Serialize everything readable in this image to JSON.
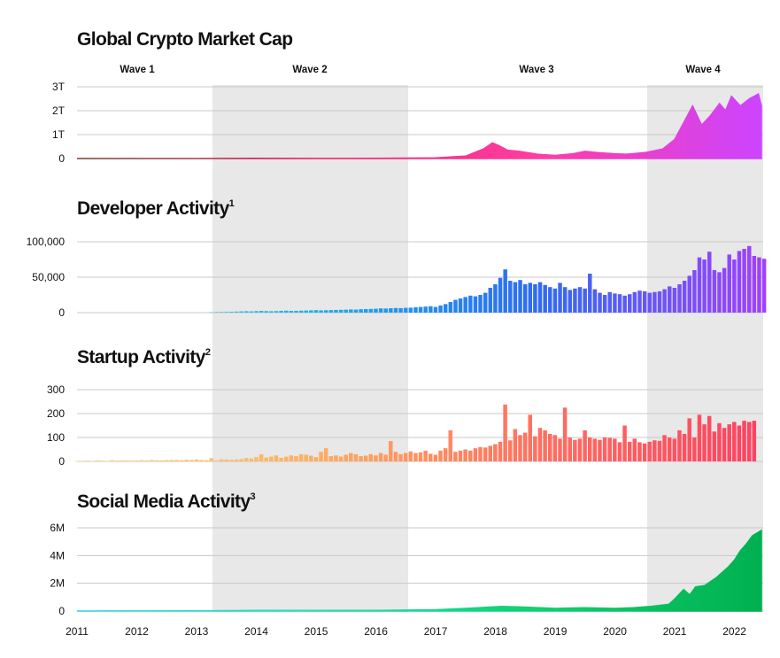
{
  "waves": [
    "Wave 1",
    "Wave 2",
    "Wave 3",
    "Wave 4"
  ],
  "chart_data": [
    {
      "id": "market_cap",
      "type": "area",
      "title": "Global Crypto Market Cap",
      "superscript": "",
      "yticks": [
        "0",
        "1T",
        "2T",
        "3T"
      ],
      "ylim": [
        0,
        3
      ],
      "x": [
        2011,
        2012,
        2013,
        2014,
        2015,
        2016,
        2016.5,
        2017,
        2017.5,
        2017.8,
        2017.95,
        2018.05,
        2018.2,
        2018.4,
        2018.7,
        2019,
        2019.3,
        2019.5,
        2019.7,
        2020,
        2020.2,
        2020.5,
        2020.8,
        2021,
        2021.15,
        2021.3,
        2021.45,
        2021.6,
        2021.75,
        2021.85,
        2021.95,
        2022.1,
        2022.25,
        2022.4,
        2022.45
      ],
      "values": [
        0.0,
        0.0,
        0.0,
        0.01,
        0.005,
        0.01,
        0.02,
        0.03,
        0.1,
        0.4,
        0.65,
        0.55,
        0.35,
        0.3,
        0.18,
        0.13,
        0.2,
        0.3,
        0.25,
        0.2,
        0.18,
        0.25,
        0.4,
        0.8,
        1.5,
        2.2,
        1.4,
        1.8,
        2.3,
        2.0,
        2.6,
        2.2,
        2.5,
        2.7,
        2.2
      ],
      "colors": [
        "#7a4030",
        "#e8276a",
        "#ff3da3",
        "#cc44ff"
      ]
    },
    {
      "id": "developer",
      "type": "bar",
      "title": "Developer Activity",
      "superscript": "1",
      "yticks": [
        "0",
        "50,000",
        "100,000"
      ],
      "ylim": [
        0,
        100000
      ],
      "x_start": 2013.25,
      "x_step": 0.0833,
      "values": [
        500,
        800,
        900,
        1000,
        1200,
        1500,
        1800,
        2000,
        1800,
        2200,
        2500,
        2200,
        2000,
        2200,
        2500,
        2800,
        2500,
        2600,
        2800,
        3000,
        3200,
        3500,
        3200,
        3400,
        3600,
        3800,
        4000,
        4200,
        4500,
        4300,
        4800,
        5000,
        5200,
        5500,
        6000,
        5800,
        6200,
        6500,
        6300,
        6800,
        7000,
        7500,
        8000,
        8500,
        9000,
        8000,
        10000,
        12000,
        15000,
        18000,
        20000,
        22000,
        24000,
        23000,
        25000,
        28000,
        35000,
        40000,
        49000,
        61000,
        45000,
        43000,
        46000,
        40000,
        42000,
        40000,
        43000,
        39000,
        36000,
        34000,
        42000,
        36000,
        32000,
        34000,
        36000,
        34000,
        55000,
        33000,
        28000,
        25000,
        29000,
        27000,
        26000,
        24000,
        26000,
        29000,
        31000,
        30000,
        28000,
        29000,
        30000,
        33000,
        37000,
        35000,
        40000,
        45000,
        52000,
        60000,
        78000,
        75000,
        86000,
        60000,
        57000,
        63000,
        82000,
        75000,
        87000,
        90000,
        94000,
        80000,
        78000,
        76000
      ],
      "colors": [
        "#4fd6e6",
        "#17b0f0",
        "#2f6cf0",
        "#a040ff"
      ]
    },
    {
      "id": "startup",
      "type": "bar",
      "title": "Startup Activity",
      "superscript": "2",
      "yticks": [
        "0",
        "100",
        "200",
        "300"
      ],
      "ylim": [
        0,
        300
      ],
      "x_start": 2011.0,
      "x_step": 0.0833,
      "values": [
        2,
        2,
        3,
        2,
        4,
        3,
        2,
        5,
        3,
        4,
        4,
        3,
        4,
        5,
        4,
        6,
        5,
        4,
        5,
        6,
        6,
        5,
        7,
        6,
        8,
        6,
        5,
        14,
        4,
        9,
        8,
        7,
        8,
        10,
        14,
        12,
        18,
        30,
        16,
        20,
        25,
        15,
        20,
        25,
        22,
        30,
        28,
        24,
        18,
        40,
        55,
        22,
        25,
        20,
        28,
        35,
        30,
        22,
        24,
        30,
        25,
        35,
        28,
        85,
        40,
        30,
        35,
        42,
        35,
        38,
        45,
        32,
        28,
        45,
        55,
        130,
        40,
        45,
        50,
        45,
        55,
        60,
        58,
        65,
        72,
        82,
        238,
        88,
        135,
        110,
        120,
        195,
        105,
        140,
        130,
        115,
        110,
        95,
        225,
        100,
        90,
        95,
        130,
        100,
        95,
        90,
        100,
        98,
        95,
        80,
        150,
        82,
        95,
        80,
        75,
        82,
        88,
        86,
        110,
        100,
        95,
        130,
        115,
        180,
        100,
        195,
        155,
        190,
        125,
        160,
        140,
        155,
        165,
        150,
        170,
        165,
        170
      ],
      "colors": [
        "#ffd37a",
        "#ffb060",
        "#ff7060",
        "#ff4060"
      ]
    },
    {
      "id": "social",
      "type": "area",
      "title": "Social Media Activity",
      "superscript": "3",
      "yticks": [
        "0",
        "2M",
        "4M",
        "6M"
      ],
      "ylim": [
        0,
        6.2
      ],
      "x": [
        2011,
        2013,
        2014,
        2015,
        2016,
        2017,
        2017.5,
        2017.9,
        2018.1,
        2018.5,
        2019,
        2019.5,
        2020,
        2020.3,
        2020.6,
        2020.9,
        2021.0,
        2021.15,
        2021.25,
        2021.35,
        2021.5,
        2021.7,
        2021.9,
        2022.0,
        2022.1,
        2022.2,
        2022.3,
        2022.45
      ],
      "values": [
        0.0,
        0.02,
        0.05,
        0.05,
        0.05,
        0.1,
        0.2,
        0.3,
        0.35,
        0.3,
        0.2,
        0.25,
        0.2,
        0.25,
        0.35,
        0.5,
        0.9,
        1.6,
        1.2,
        1.8,
        1.9,
        2.5,
        3.3,
        3.8,
        4.5,
        5.0,
        5.6,
        6.0
      ],
      "colors": [
        "#33d0e0",
        "#20e0b0",
        "#10d070",
        "#00b050"
      ]
    }
  ],
  "x_axis": {
    "ticks": [
      "2011",
      "2012",
      "2013",
      "2014",
      "2015",
      "2016",
      "2017",
      "2018",
      "2019",
      "2020",
      "2021",
      "2022"
    ]
  }
}
